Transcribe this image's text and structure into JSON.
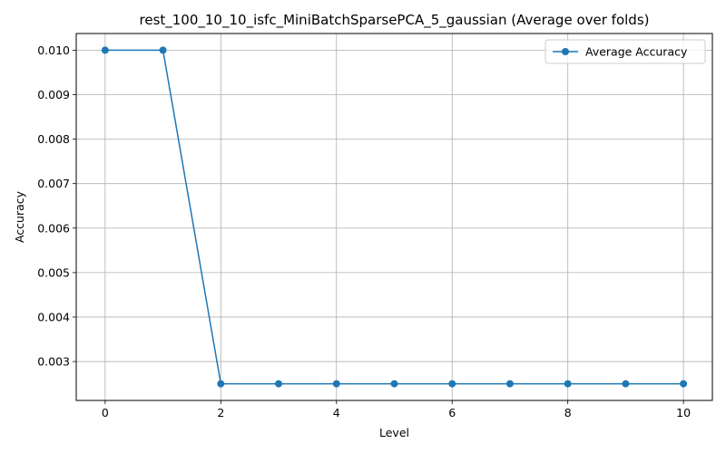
{
  "chart_data": {
    "type": "line",
    "title": "rest_100_10_10_isfc_MiniBatchSparsePCA_5_gaussian (Average over folds)",
    "xlabel": "Level",
    "ylabel": "Accuracy",
    "xlim": [
      -0.5,
      10.5
    ],
    "ylim": [
      0.002125,
      0.010375
    ],
    "xticks": [
      0,
      2,
      4,
      6,
      8,
      10
    ],
    "xtick_labels": [
      "0",
      "2",
      "4",
      "6",
      "8",
      "10"
    ],
    "yticks": [
      0.003,
      0.004,
      0.005,
      0.006,
      0.007,
      0.008,
      0.009,
      0.01
    ],
    "ytick_labels": [
      "0.003",
      "0.004",
      "0.005",
      "0.006",
      "0.007",
      "0.008",
      "0.009",
      "0.010"
    ],
    "grid": true,
    "legend_position": "top-right",
    "series": [
      {
        "name": "Average Accuracy",
        "color": "#1f77b4",
        "marker": "circle",
        "x": [
          0,
          1,
          2,
          3,
          4,
          5,
          6,
          7,
          8,
          9,
          10
        ],
        "y": [
          0.01,
          0.01,
          0.0025,
          0.0025,
          0.0025,
          0.0025,
          0.0025,
          0.0025,
          0.0025,
          0.0025,
          0.0025
        ]
      }
    ]
  }
}
